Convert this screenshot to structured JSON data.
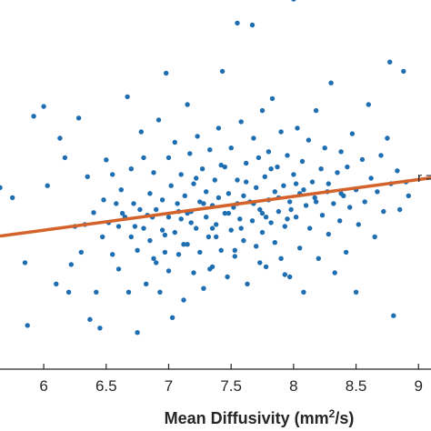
{
  "chart_data": {
    "type": "scatter",
    "title": "",
    "xlabel": {
      "prefix": "Mean Diffusivity (mm",
      "sup": "2",
      "suffix": "/s)"
    },
    "ylabel": "",
    "xlim": [
      5.65,
      9.1
    ],
    "ylim": [
      0,
      100
    ],
    "x_ticks": [
      "6",
      "6.5",
      "7",
      "7.5",
      "8",
      "8.5",
      "9"
    ],
    "grid": false,
    "annotation": "r =",
    "colors": {
      "points": "#1f6eb2",
      "fit_line": "#d4622b",
      "axis": "#262626"
    },
    "fit_line": {
      "x": [
        5.65,
        9.1
      ],
      "y": [
        35.6,
        51.2
      ]
    },
    "series": [
      {
        "points": [
          [
            5.65,
            48.6
          ],
          [
            5.75,
            45.9
          ],
          [
            5.85,
            28.5
          ],
          [
            5.87,
            11.7
          ],
          [
            5.92,
            67.7
          ],
          [
            6.0,
            70.3
          ],
          [
            6.03,
            49.1
          ],
          [
            6.1,
            22.8
          ],
          [
            6.13,
            61.8
          ],
          [
            6.17,
            56.6
          ],
          [
            6.2,
            20.6
          ],
          [
            6.22,
            28.0
          ],
          [
            6.25,
            38.2
          ],
          [
            6.28,
            67.2
          ],
          [
            6.3,
            31.3
          ],
          [
            6.35,
            51.5
          ],
          [
            6.37,
            13.3
          ],
          [
            6.4,
            41.9
          ],
          [
            6.42,
            20.6
          ],
          [
            6.45,
            11.0
          ],
          [
            6.48,
            45.3
          ],
          [
            6.5,
            56.0
          ],
          [
            6.52,
            39.2
          ],
          [
            6.55,
            30.7
          ],
          [
            6.55,
            52.1
          ],
          [
            6.58,
            44.3
          ],
          [
            6.6,
            26.8
          ],
          [
            6.6,
            38.2
          ],
          [
            6.62,
            48.0
          ],
          [
            6.65,
            40.7
          ],
          [
            6.67,
            72.9
          ],
          [
            6.68,
            20.6
          ],
          [
            6.7,
            53.6
          ],
          [
            6.7,
            35.4
          ],
          [
            6.72,
            44.3
          ],
          [
            6.75,
            9.8
          ],
          [
            6.75,
            31.8
          ],
          [
            6.77,
            42.7
          ],
          [
            6.78,
            63.5
          ],
          [
            6.8,
            56.6
          ],
          [
            6.8,
            37.7
          ],
          [
            6.82,
            22.8
          ],
          [
            6.85,
            47.0
          ],
          [
            6.85,
            34.4
          ],
          [
            6.87,
            40.7
          ],
          [
            6.88,
            52.6
          ],
          [
            6.9,
            28.5
          ],
          [
            6.9,
            42.7
          ],
          [
            6.92,
            66.7
          ],
          [
            6.93,
            20.6
          ],
          [
            6.95,
            45.3
          ],
          [
            6.95,
            37.2
          ],
          [
            6.97,
            31.3
          ],
          [
            6.98,
            79.2
          ],
          [
            7.0,
            56.6
          ],
          [
            7.0,
            40.7
          ],
          [
            7.0,
            26.3
          ],
          [
            7.02,
            49.1
          ],
          [
            7.03,
            13.8
          ],
          [
            7.05,
            36.6
          ],
          [
            7.05,
            60.7
          ],
          [
            7.07,
            44.3
          ],
          [
            7.08,
            30.7
          ],
          [
            7.1,
            52.1
          ],
          [
            7.1,
            40.2
          ],
          [
            7.12,
            18.5
          ],
          [
            7.13,
            46.4
          ],
          [
            7.15,
            33.4
          ],
          [
            7.15,
            70.8
          ],
          [
            7.17,
            57.7
          ],
          [
            7.18,
            42.2
          ],
          [
            7.2,
            25.8
          ],
          [
            7.2,
            49.6
          ],
          [
            7.22,
            37.7
          ],
          [
            7.23,
            62.3
          ],
          [
            7.25,
            44.8
          ],
          [
            7.25,
            31.3
          ],
          [
            7.27,
            53.6
          ],
          [
            7.28,
            21.6
          ],
          [
            7.3,
            40.7
          ],
          [
            7.3,
            47.5
          ],
          [
            7.32,
            35.4
          ],
          [
            7.33,
            58.7
          ],
          [
            7.35,
            43.8
          ],
          [
            7.35,
            27.4
          ],
          [
            7.37,
            50.6
          ],
          [
            7.38,
            38.7
          ],
          [
            7.4,
            64.5
          ],
          [
            7.4,
            45.9
          ],
          [
            7.42,
            31.8
          ],
          [
            7.43,
            79.7
          ],
          [
            7.45,
            41.7
          ],
          [
            7.45,
            54.1
          ],
          [
            7.47,
            24.7
          ],
          [
            7.48,
            47.0
          ],
          [
            7.5,
            37.2
          ],
          [
            7.5,
            59.2
          ],
          [
            7.52,
            43.3
          ],
          [
            7.53,
            30.2
          ],
          [
            7.55,
            50.6
          ],
          [
            7.55,
            92.6
          ],
          [
            7.57,
            40.2
          ],
          [
            7.58,
            66.2
          ],
          [
            7.6,
            46.4
          ],
          [
            7.6,
            34.4
          ],
          [
            7.62,
            55.1
          ],
          [
            7.63,
            22.8
          ],
          [
            7.65,
            44.8
          ],
          [
            7.67,
            92.1
          ],
          [
            7.67,
            39.7
          ],
          [
            7.68,
            61.8
          ],
          [
            7.7,
            48.6
          ],
          [
            7.7,
            32.9
          ],
          [
            7.72,
            56.6
          ],
          [
            7.73,
            42.7
          ],
          [
            7.75,
            69.2
          ],
          [
            7.75,
            36.6
          ],
          [
            7.77,
            51.5
          ],
          [
            7.78,
            27.4
          ],
          [
            7.8,
            45.3
          ],
          [
            7.8,
            58.2
          ],
          [
            7.82,
            39.2
          ],
          [
            7.83,
            72.4
          ],
          [
            7.85,
            47.5
          ],
          [
            7.85,
            33.9
          ],
          [
            7.87,
            54.1
          ],
          [
            7.88,
            42.2
          ],
          [
            7.9,
            63.5
          ],
          [
            7.9,
            29.6
          ],
          [
            7.92,
            49.1
          ],
          [
            7.93,
            38.2
          ],
          [
            7.95,
            57.2
          ],
          [
            7.97,
            44.8
          ],
          [
            7.97,
            24.7
          ],
          [
            7.98,
            103.5
          ],
          [
            8.0,
            99.0
          ],
          [
            8.0,
            52.1
          ],
          [
            8.02,
            40.7
          ],
          [
            8.03,
            64.5
          ],
          [
            8.05,
            47.0
          ],
          [
            8.05,
            32.4
          ],
          [
            8.07,
            55.6
          ],
          [
            8.08,
            20.6
          ],
          [
            8.1,
            43.8
          ],
          [
            8.12,
            61.3
          ],
          [
            8.13,
            37.7
          ],
          [
            8.15,
            50.1
          ],
          [
            8.17,
            45.9
          ],
          [
            8.18,
            69.2
          ],
          [
            8.2,
            29.6
          ],
          [
            8.22,
            53.6
          ],
          [
            8.23,
            41.2
          ],
          [
            8.25,
            59.2
          ],
          [
            8.27,
            47.5
          ],
          [
            8.28,
            36.1
          ],
          [
            8.3,
            76.6
          ],
          [
            8.32,
            44.3
          ],
          [
            8.33,
            25.8
          ],
          [
            8.35,
            52.6
          ],
          [
            8.37,
            39.7
          ],
          [
            8.38,
            58.2
          ],
          [
            8.4,
            46.4
          ],
          [
            8.42,
            31.3
          ],
          [
            8.43,
            54.1
          ],
          [
            8.45,
            43.3
          ],
          [
            8.47,
            63.0
          ],
          [
            8.5,
            48.0
          ],
          [
            8.5,
            20.6
          ],
          [
            8.52,
            38.7
          ],
          [
            8.55,
            56.1
          ],
          [
            8.57,
            44.8
          ],
          [
            8.6,
            70.8
          ],
          [
            8.62,
            51.1
          ],
          [
            8.65,
            35.4
          ],
          [
            8.67,
            47.5
          ],
          [
            8.7,
            57.2
          ],
          [
            8.72,
            42.2
          ],
          [
            8.75,
            61.8
          ],
          [
            8.77,
            82.2
          ],
          [
            8.78,
            49.6
          ],
          [
            8.8,
            14.3
          ],
          [
            8.83,
            53.1
          ],
          [
            8.85,
            42.7
          ],
          [
            8.88,
            79.7
          ],
          [
            8.9,
            50.1
          ],
          [
            8.92,
            46.4
          ],
          [
            6.33,
            38.7
          ],
          [
            6.47,
            35.4
          ],
          [
            6.63,
            41.7
          ],
          [
            6.73,
            38.2
          ],
          [
            6.83,
            41.2
          ],
          [
            6.97,
            35.9
          ],
          [
            7.08,
            42.2
          ],
          [
            7.18,
            39.2
          ],
          [
            7.28,
            44.3
          ],
          [
            7.38,
            35.4
          ],
          [
            7.48,
            41.7
          ],
          [
            7.58,
            37.7
          ],
          [
            7.68,
            44.3
          ],
          [
            7.78,
            40.7
          ],
          [
            7.88,
            45.9
          ],
          [
            7.98,
            42.7
          ],
          [
            8.08,
            48.0
          ],
          [
            8.18,
            44.8
          ],
          [
            8.28,
            49.6
          ],
          [
            8.38,
            47.0
          ],
          [
            6.88,
            29.6
          ],
          [
            7.12,
            33.4
          ],
          [
            7.33,
            26.8
          ],
          [
            7.53,
            31.8
          ],
          [
            7.73,
            28.5
          ],
          [
            7.93,
            25.3
          ],
          [
            7.22,
            51.1
          ],
          [
            7.42,
            54.6
          ],
          [
            7.62,
            50.1
          ],
          [
            7.82,
            53.6
          ],
          [
            8.02,
            49.6
          ],
          [
            7.15,
            41.7
          ],
          [
            7.35,
            37.7
          ],
          [
            7.55,
            44.3
          ],
          [
            7.75,
            41.7
          ],
          [
            7.95,
            40.2
          ]
        ]
      }
    ]
  }
}
